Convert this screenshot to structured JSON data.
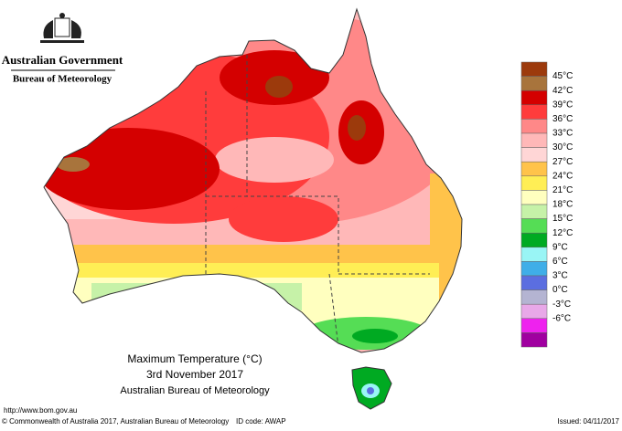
{
  "header": {
    "title": "Australian Government",
    "subtitle": "Bureau of Meteorology"
  },
  "map": {
    "title": "Maximum Temperature (°C)",
    "date": "3rd November 2017",
    "source": "Australian Bureau of Meteorology"
  },
  "legend": {
    "labels": [
      "45°C",
      "42°C",
      "39°C",
      "36°C",
      "33°C",
      "30°C",
      "27°C",
      "24°C",
      "21°C",
      "18°C",
      "15°C",
      "12°C",
      "9°C",
      "6°C",
      "3°C",
      "0°C",
      "-3°C",
      "-6°C"
    ],
    "colors": [
      "#9c3a0c",
      "#a8743c",
      "#d40000",
      "#ff3c3c",
      "#ff8888",
      "#ffb8b8",
      "#ffd6d6",
      "#ffc34a",
      "#ffee55",
      "#ffffbf",
      "#c6f2a8",
      "#55dd55",
      "#00aa22",
      "#99f5f5",
      "#3faee8",
      "#5b6ee0",
      "#b4b4d2",
      "#e8a8e8",
      "#ee22ee",
      "#a000a0"
    ]
  },
  "footer": {
    "url": "http://www.bom.gov.au",
    "copyright": "© Commonwealth of Australia 2017, Australian Bureau of Meteorology",
    "id_code": "ID code: AWAP",
    "issued": "Issued: 04/11/2017"
  }
}
